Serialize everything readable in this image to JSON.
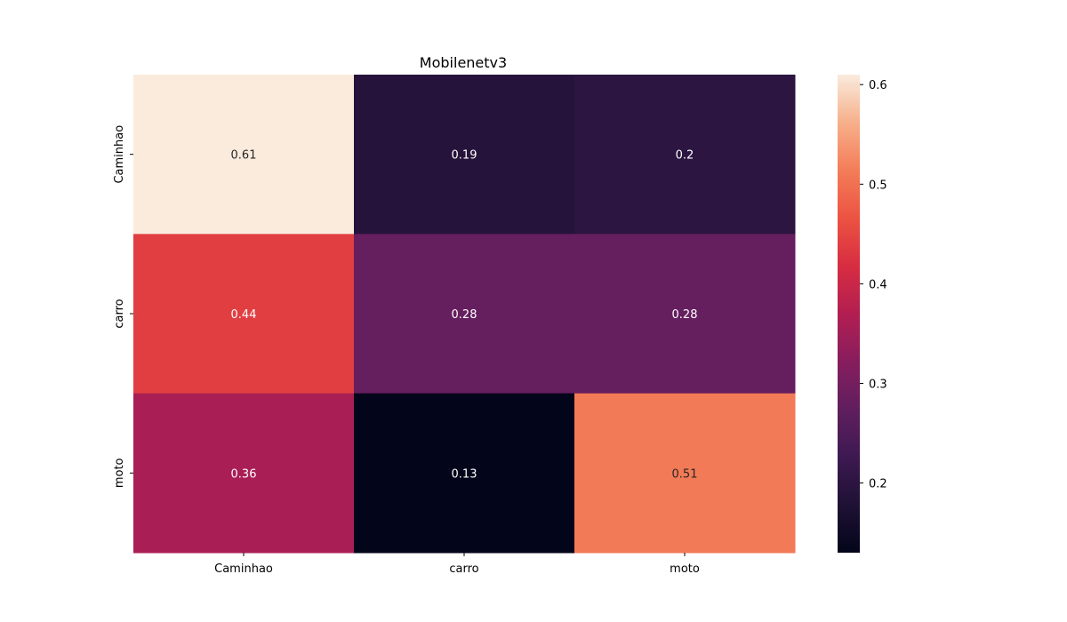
{
  "chart_data": {
    "type": "heatmap",
    "title": "Mobilenetv3",
    "xlabel": "",
    "ylabel": "",
    "x_categories": [
      "Caminhao",
      "carro",
      "moto"
    ],
    "y_categories": [
      "Caminhao",
      "carro",
      "moto"
    ],
    "values": [
      [
        0.61,
        0.19,
        0.2
      ],
      [
        0.44,
        0.28,
        0.28
      ],
      [
        0.36,
        0.13,
        0.51
      ]
    ],
    "colormap": "rocket",
    "colorbar": {
      "vmin": 0.13,
      "vmax": 0.61,
      "ticks": [
        0.2,
        0.3,
        0.4,
        0.5,
        0.6
      ],
      "tick_labels": [
        "0.2",
        "0.3",
        "0.4",
        "0.5",
        "0.6"
      ]
    },
    "grid": false,
    "legend": "colorbar-right"
  }
}
